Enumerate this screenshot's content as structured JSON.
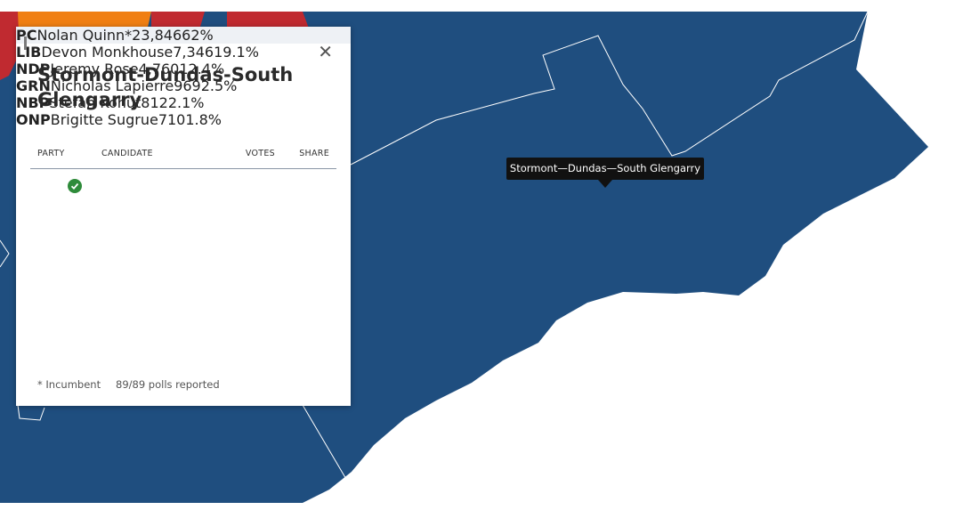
{
  "popup": {
    "title": "Stormont-Dundas-South Glengarry",
    "columns": [
      "PARTY",
      "CANDIDATE",
      "VOTES",
      "SHARE"
    ],
    "rows": [
      {
        "party": "PC",
        "color": "#1d4f8c",
        "candidate": "Nolan Quinn*",
        "votes": "23,846",
        "share": "62%"
      },
      {
        "party": "LIB",
        "color": "#d12b35",
        "candidate": "Devon Monkhouse",
        "votes": "7,346",
        "share": "19.1%"
      },
      {
        "party": "NDP",
        "color": "#f07f13",
        "candidate": "Jeremy Rose",
        "votes": "4,760",
        "share": "12.4%"
      },
      {
        "party": "GRN",
        "color": "#3aa63a",
        "candidate": "Nicholas Lapierre",
        "votes": "969",
        "share": "2.5%"
      },
      {
        "party": "NBP",
        "color": "#7a7a7a",
        "candidate": "Stefan Kohut",
        "votes": "812",
        "share": "2.1%"
      },
      {
        "party": "ONP",
        "color": "#7a7a7a",
        "candidate": "Brigitte Sugrue",
        "votes": "710",
        "share": "1.8%"
      }
    ],
    "footer": [
      "* Incumbent",
      "89/89 polls reported"
    ]
  },
  "tooltip": "Stormont—Dundas—South Glengarry"
}
